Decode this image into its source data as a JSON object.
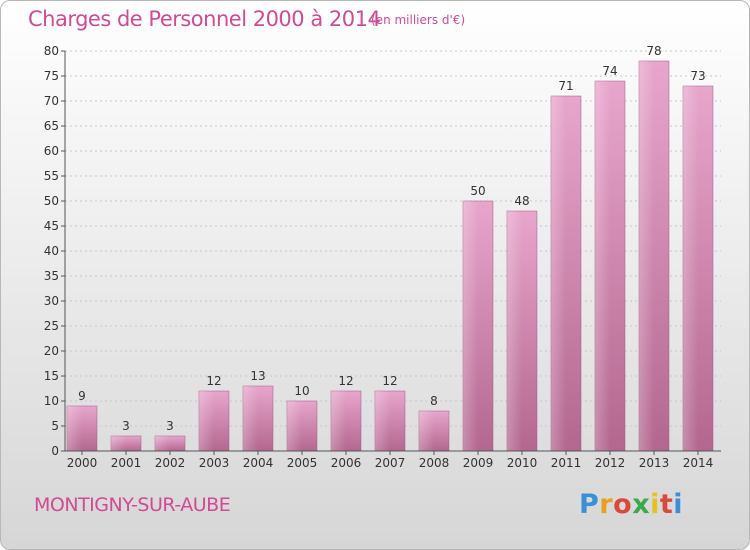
{
  "title": "Charges de Personnel 2000 à 2014",
  "subtitle": "(en milliers d'€)",
  "commune": "MONTIGNY-SUR-AUBE",
  "logo": {
    "letters": [
      "P",
      "r",
      "o",
      "x",
      "i",
      "t",
      "i"
    ],
    "colors": [
      "#3a8fd6",
      "#e8a020",
      "#d94a3a",
      "#3aaa4a",
      "#e8c020",
      "#d94a3a",
      "#3a8fd6"
    ]
  },
  "colors": {
    "bar": "#d88fb8",
    "title": "#d04a95"
  },
  "chart_data": {
    "type": "bar",
    "categories": [
      "2000",
      "2001",
      "2002",
      "2003",
      "2004",
      "2005",
      "2006",
      "2007",
      "2008",
      "2009",
      "2010",
      "2011",
      "2012",
      "2013",
      "2014"
    ],
    "values": [
      9,
      3,
      3,
      12,
      13,
      10,
      12,
      12,
      8,
      50,
      48,
      71,
      74,
      78,
      73
    ],
    "ylim": [
      0,
      80
    ],
    "yticks": [
      0,
      5,
      10,
      15,
      20,
      25,
      30,
      35,
      40,
      45,
      50,
      55,
      60,
      65,
      70,
      75,
      80
    ],
    "grid": true
  }
}
